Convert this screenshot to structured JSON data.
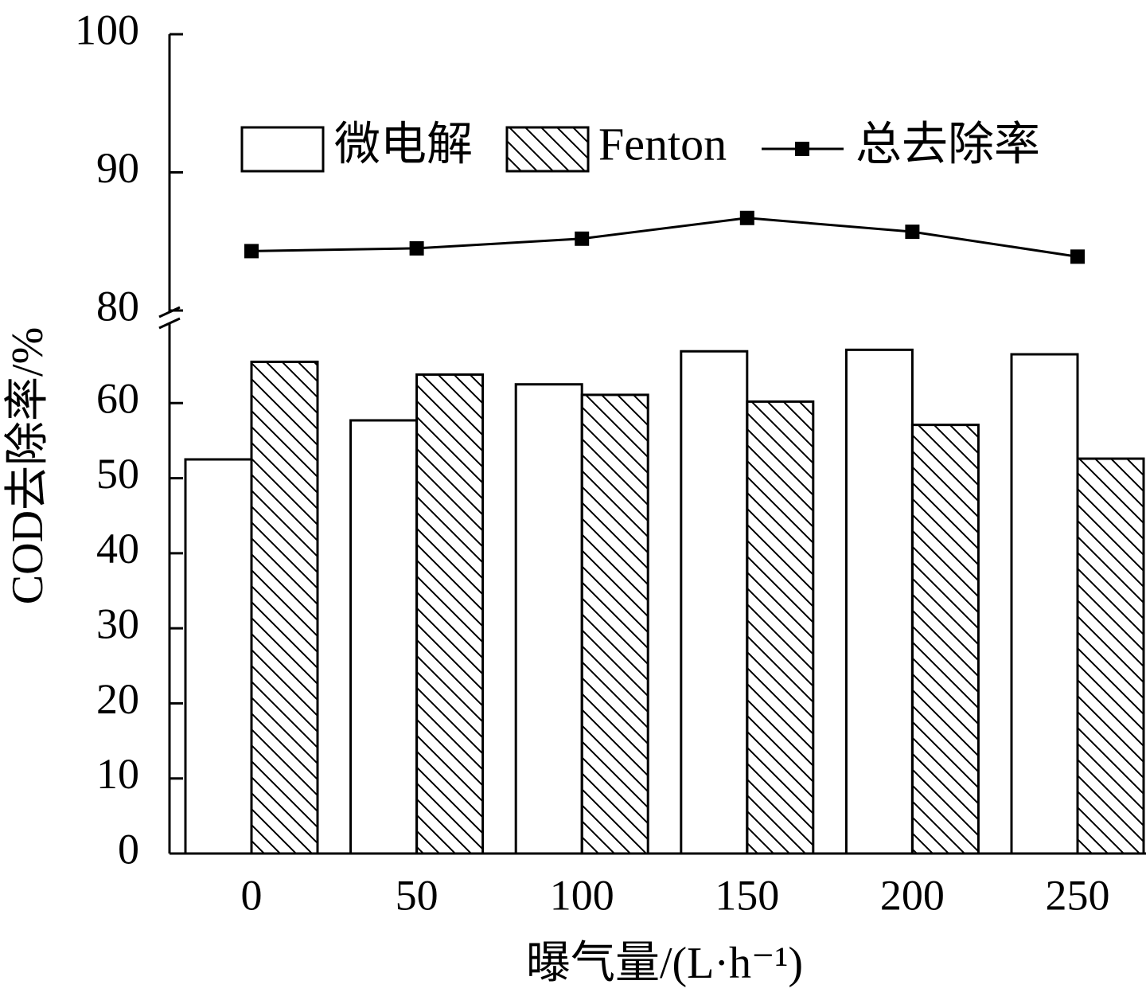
{
  "chart_data": {
    "type": "bar",
    "x_label": "曝气量/(L·h⁻¹)",
    "y_label": "COD去除率/%",
    "categories": [
      "0",
      "50",
      "100",
      "150",
      "200",
      "250"
    ],
    "ylim": [
      0,
      70
    ],
    "yticks": [
      0,
      10,
      20,
      30,
      40,
      50,
      60
    ],
    "y2lim": [
      80,
      100
    ],
    "y2ticks": [
      80,
      90,
      100
    ],
    "series": [
      {
        "name": "微电解",
        "color": "#ffffff",
        "values": [
          52.5,
          57.7,
          62.5,
          66.9,
          67.1,
          66.5
        ]
      },
      {
        "name": "Fenton",
        "color": "#ffffff",
        "hatch": true,
        "values": [
          65.5,
          63.8,
          61.1,
          60.2,
          57.1,
          52.6
        ]
      },
      {
        "name": "总去除率",
        "type": "line",
        "axis": "y2",
        "color": "#000000",
        "values": [
          84.3,
          84.5,
          85.2,
          86.7,
          85.7,
          83.9
        ]
      }
    ]
  }
}
